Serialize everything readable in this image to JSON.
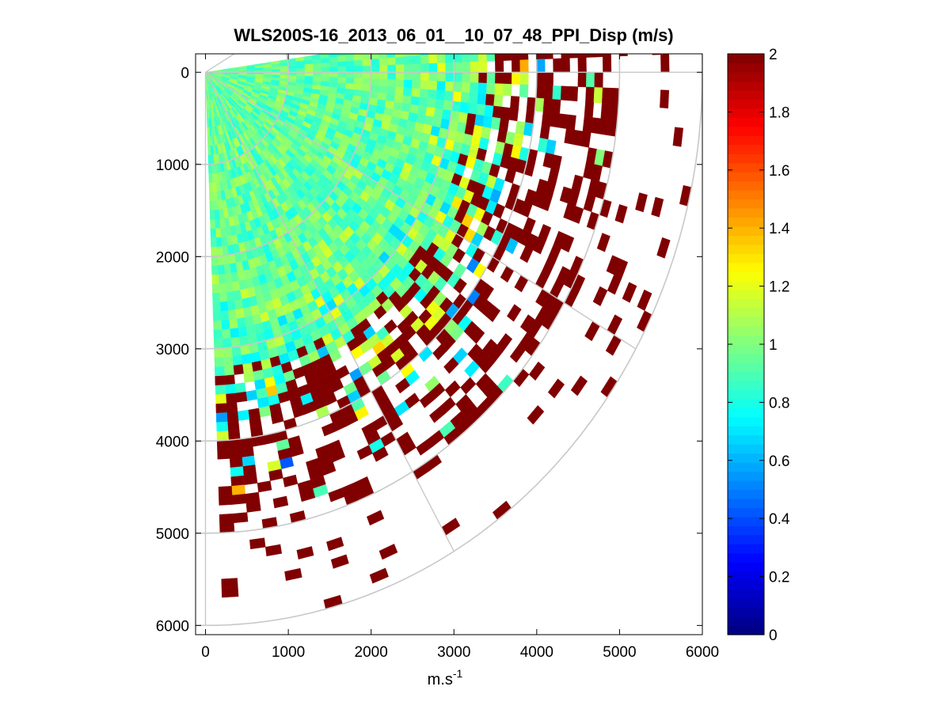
{
  "chart_data": {
    "type": "heatmap",
    "subtype": "polar-ppi-scan",
    "title": "WLS200S-16_2013_06_01__10_07_48_PPI_Disp (m/s)",
    "xlabel": "m.s",
    "xlabel_superscript": "-1",
    "ylabel": "",
    "xlim": [
      -120,
      6000
    ],
    "ylim": [
      -200,
      6100
    ],
    "y_reversed": true,
    "xticks": [
      0,
      1000,
      2000,
      3000,
      4000,
      5000,
      6000
    ],
    "yticks": [
      0,
      1000,
      2000,
      3000,
      4000,
      5000,
      6000
    ],
    "xtick_labels": [
      "0",
      "1000",
      "2000",
      "3000",
      "4000",
      "5000",
      "6000"
    ],
    "ytick_labels": [
      "0",
      "1000",
      "2000",
      "3000",
      "4000",
      "5000",
      "6000"
    ],
    "scan": {
      "origin": [
        0,
        0
      ],
      "azimuth_range_deg": [
        -8,
        88
      ],
      "max_range": 6000,
      "range_gate": 100,
      "azimuth_step_deg": 2
    },
    "polar_grid": {
      "rings": [
        1000,
        2000,
        3000,
        4000,
        5000,
        6000
      ],
      "spokes_deg": [
        -30,
        0,
        30,
        60,
        90
      ]
    },
    "colorbar": {
      "colormap": "jet",
      "range": [
        0,
        2
      ],
      "ticks": [
        0,
        0.2,
        0.4,
        0.6,
        0.8,
        1,
        1.2,
        1.4,
        1.6,
        1.8,
        2
      ],
      "tick_labels": [
        "0",
        "0.2",
        "0.4",
        "0.6",
        "0.8",
        "1",
        "1.2",
        "1.4",
        "1.6",
        "1.8",
        "2"
      ]
    },
    "field_model": {
      "near_value": 0.95,
      "transition_start_range": 3200,
      "transition_end_range": 4400,
      "saturation_value": 2.0,
      "noise_level": 0.15,
      "data_fill_fraction_far": 0.45
    }
  }
}
